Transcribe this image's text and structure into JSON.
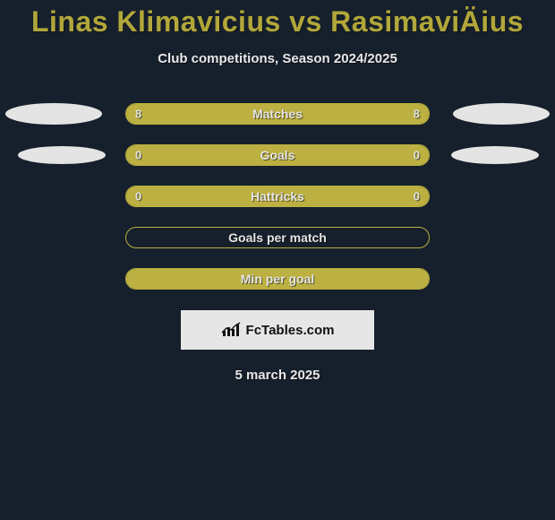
{
  "colors": {
    "background": "#16202c",
    "accent": "#bbb041",
    "title": "#b1a73a",
    "text_light": "#e8e8e8",
    "ellipse": "#e4e4e4",
    "brand_bg": "#e6e6e6",
    "brand_text": "#111111"
  },
  "title": "Linas Klimavicius vs RasimaviÄius",
  "subtitle": "Club competitions, Season 2024/2025",
  "rows": [
    {
      "label": "Matches",
      "left": "8",
      "right": "8",
      "left_pct": 50,
      "right_pct": 50,
      "show_ellipse": true,
      "ellipse_small": false
    },
    {
      "label": "Goals",
      "left": "0",
      "right": "0",
      "left_pct": 50,
      "right_pct": 50,
      "show_ellipse": true,
      "ellipse_small": true
    },
    {
      "label": "Hattricks",
      "left": "0",
      "right": "0",
      "left_pct": 50,
      "right_pct": 50,
      "show_ellipse": false,
      "ellipse_small": false
    },
    {
      "label": "Goals per match",
      "left": "",
      "right": "",
      "left_pct": 0,
      "right_pct": 0,
      "show_ellipse": false,
      "ellipse_small": false
    },
    {
      "label": "Min per goal",
      "left": "",
      "right": "",
      "left_pct": 100,
      "right_pct": 0,
      "show_ellipse": false,
      "ellipse_small": false
    }
  ],
  "brand": "FcTables.com",
  "date": "5 march 2025"
}
